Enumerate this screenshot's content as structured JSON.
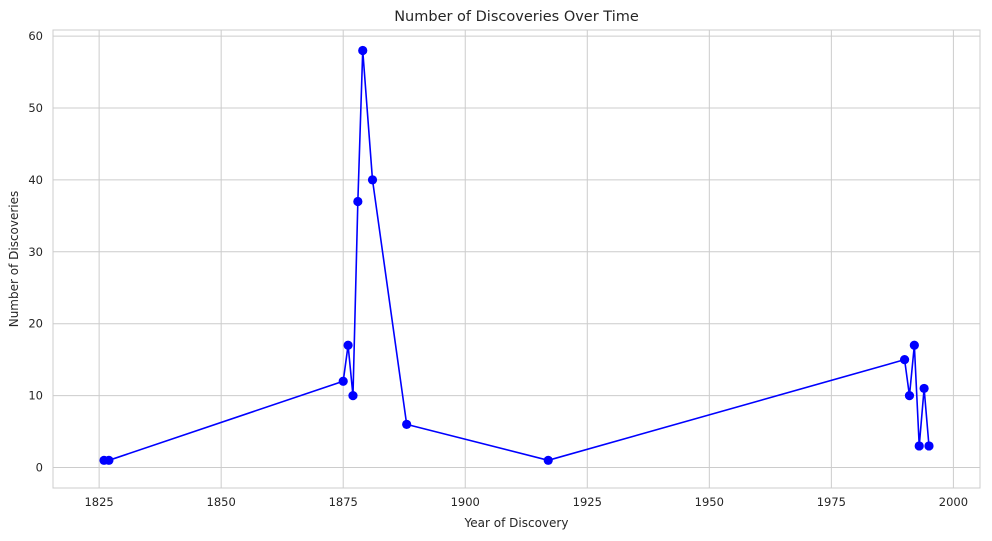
{
  "chart_data": {
    "type": "line",
    "title": "Number of Discoveries Over Time",
    "xlabel": "Year of Discovery",
    "ylabel": "Number of Discoveries",
    "xlim": [
      1815.55,
      2005.45
    ],
    "ylim": [
      -2.85,
      60.85
    ],
    "x_ticks": [
      1825,
      1850,
      1875,
      1900,
      1925,
      1950,
      1975,
      2000
    ],
    "y_ticks": [
      0,
      10,
      20,
      30,
      40,
      50,
      60
    ],
    "grid": true,
    "series": [
      {
        "color": "#0000ff",
        "marker": "circle",
        "x": [
          1826,
          1827,
          1875,
          1876,
          1877,
          1878,
          1879,
          1881,
          1888,
          1917,
          1990,
          1991,
          1992,
          1993,
          1994,
          1995
        ],
        "y": [
          1,
          1,
          12,
          17,
          10,
          37,
          58,
          40,
          6,
          1,
          15,
          10,
          17,
          3,
          11,
          3
        ]
      }
    ]
  }
}
